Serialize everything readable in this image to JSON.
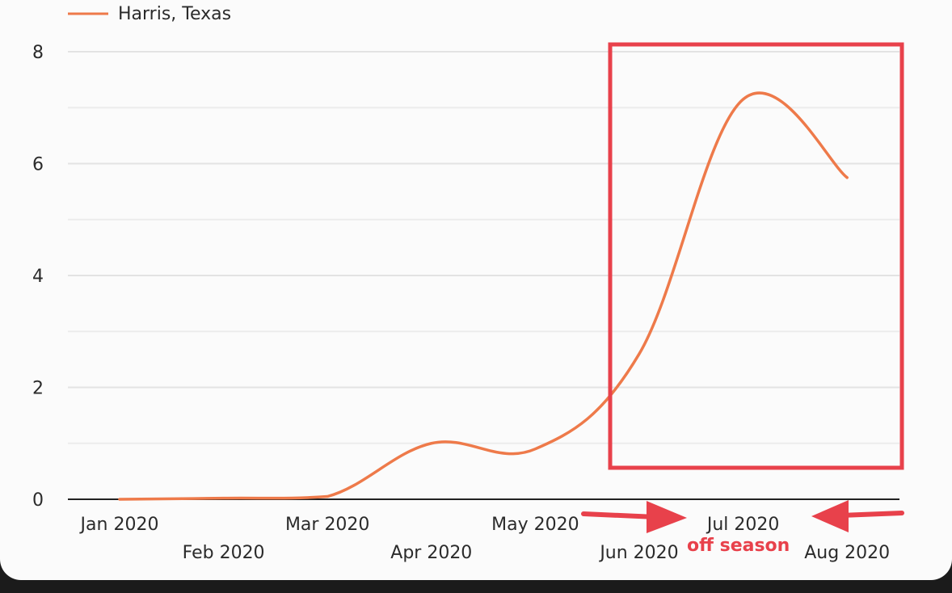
{
  "chart_data": {
    "type": "line",
    "title": "",
    "xlabel": "",
    "ylabel": "",
    "ylim": [
      0,
      8
    ],
    "y_ticks": [
      0,
      2,
      4,
      6,
      8
    ],
    "grid": true,
    "legend_placement": "top-left",
    "categories": [
      "Jan 2020",
      "Feb 2020",
      "Mar 2020",
      "Apr 2020",
      "May 2020",
      "Jun 2020",
      "Jul 2020",
      "Aug 2020"
    ],
    "series": [
      {
        "name": "Harris, Texas",
        "color": "#ee7a4a",
        "values": [
          0.0,
          0.02,
          0.05,
          1.0,
          0.9,
          2.6,
          7.15,
          5.75
        ]
      }
    ],
    "annotations": [
      {
        "label": "off season",
        "color": "#e8414b",
        "highlight_categories": [
          "Jun 2020",
          "Jul 2020",
          "Aug 2020"
        ]
      }
    ]
  }
}
